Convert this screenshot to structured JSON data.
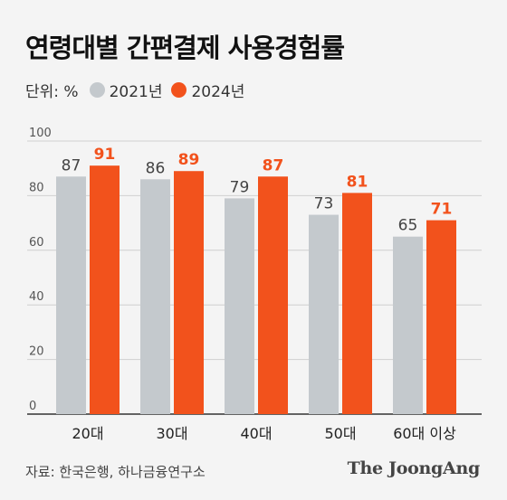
{
  "header": {
    "title": "연령대별 간편결제 사용경험률",
    "unit_label": "단위: %"
  },
  "footer": {
    "source": "자료: 한국은행, 하나금융연구소",
    "logo": "The JoongAng"
  },
  "chart_data": {
    "type": "bar",
    "title": "연령대별 간편결제 사용경험률",
    "xlabel": "",
    "ylabel": "",
    "ylim": [
      0,
      100
    ],
    "yticks": [
      0,
      20,
      40,
      60,
      80,
      100
    ],
    "grid": true,
    "legend_position": "top-left",
    "categories": [
      "20대",
      "30대",
      "40대",
      "50대",
      "60대 이상"
    ],
    "series": [
      {
        "name": "2021년",
        "color": "#c4c9cd",
        "label_color": "#444444",
        "values": [
          87,
          86,
          79,
          73,
          65
        ]
      },
      {
        "name": "2024년",
        "color": "#f2521c",
        "label_color": "#f2521c",
        "values": [
          91,
          89,
          87,
          81,
          71
        ]
      }
    ]
  }
}
